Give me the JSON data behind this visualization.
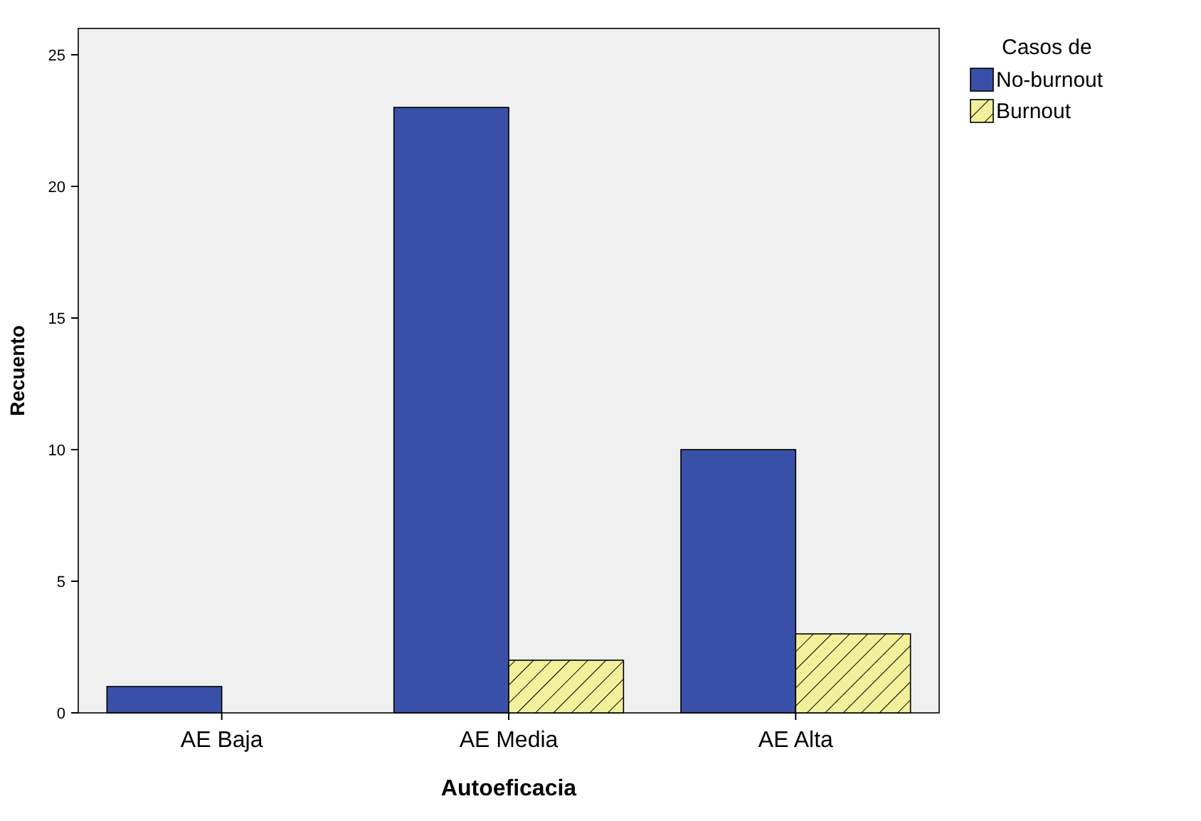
{
  "chart_data": {
    "type": "bar",
    "xlabel": "Autoeficacia",
    "ylabel": "Recuento",
    "legend_title": "Casos de",
    "categories": [
      "AE Baja",
      "AE Media",
      "AE Alta"
    ],
    "series": [
      {
        "name": "No-burnout",
        "color": "#3a50a8",
        "values": [
          1,
          23,
          10
        ]
      },
      {
        "name": "Burnout",
        "color": "#f2f09a",
        "values": [
          0,
          2,
          3
        ]
      }
    ],
    "ylim": [
      0,
      26
    ],
    "yticks": [
      0,
      5,
      10,
      15,
      20,
      25
    ],
    "grid": false,
    "legend": "top right"
  }
}
